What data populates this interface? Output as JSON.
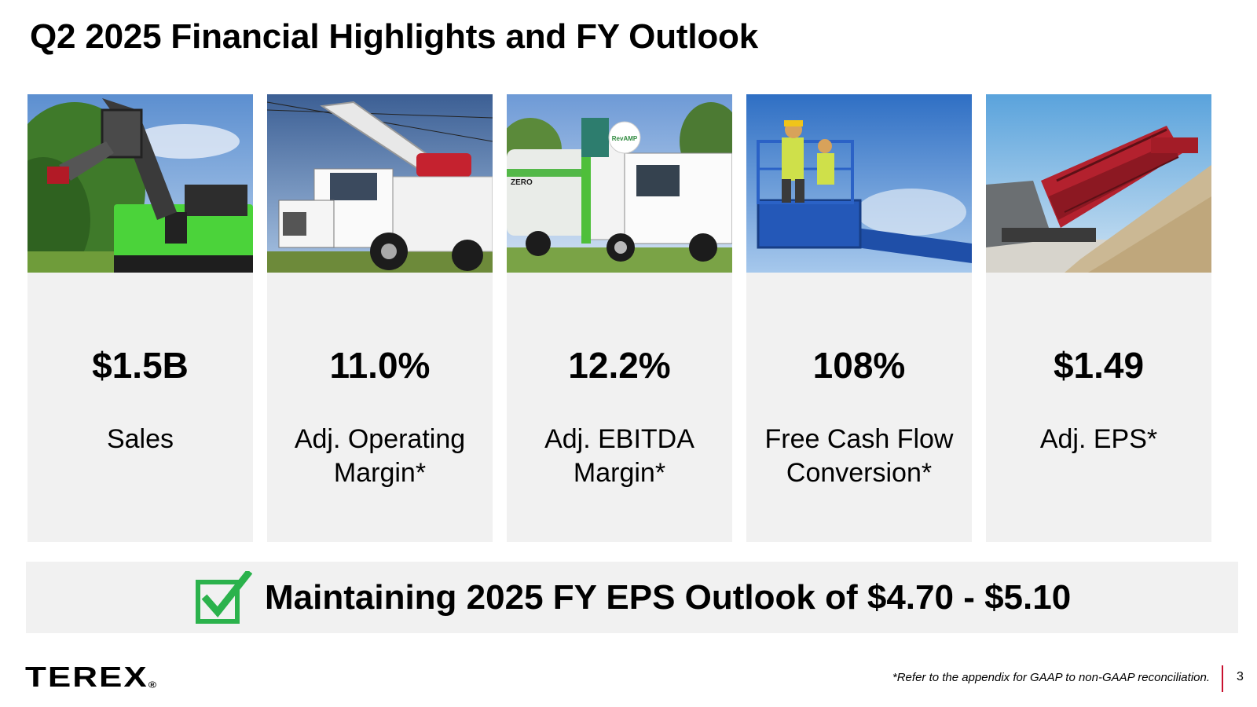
{
  "slide": {
    "title": "Q2 2025 Financial Highlights and FY Outlook",
    "page_number": "3"
  },
  "cards": [
    {
      "value": "$1.5B",
      "label_lines": [
        "Sales"
      ],
      "photo": "green electric material handler machine"
    },
    {
      "value": "11.0%",
      "label_lines": [
        "Adj. Operating",
        "Margin*"
      ],
      "photo": "white utility truck with digger derrick"
    },
    {
      "value": "12.2%",
      "label_lines": [
        "Adj. EBITDA",
        "Margin*"
      ],
      "photo": "refuse collection truck",
      "photo_text": [
        "RevAMP",
        "ZERO"
      ]
    },
    {
      "value": "108%",
      "label_lines": [
        "Free Cash Flow",
        "Conversion*"
      ],
      "photo": "worker on blue aerial lift platform"
    },
    {
      "value": "$1.49",
      "label_lines": [
        "Adj. EPS*"
      ],
      "photo": "red mobile screening plant with aggregate pile"
    }
  ],
  "banner": {
    "text": "Maintaining 2025 FY EPS Outlook of $4.70 - $5.10",
    "icon": "checkbox-check-icon",
    "check_color": "#2bb24c"
  },
  "footer": {
    "logo_text": "TEREX",
    "logo_mark": "®",
    "footnote": "*Refer to the appendix for GAAP to non-GAAP reconciliation.",
    "divider_color": "#c8102e"
  }
}
